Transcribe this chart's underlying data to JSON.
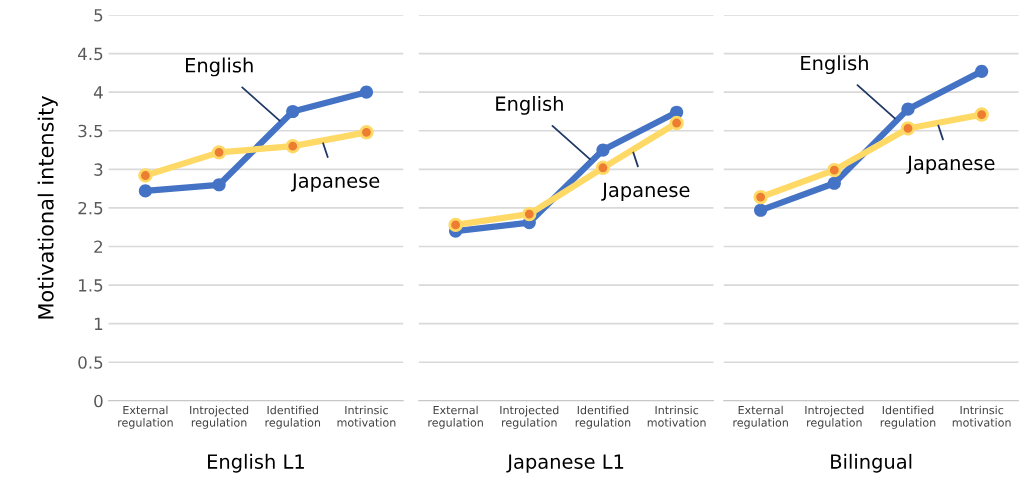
{
  "chart_data": [
    {
      "type": "line",
      "xlabel": "English L1",
      "ylabel": "Motivational intensity",
      "categories": [
        "External\nregulation",
        "Introjected\nregulation",
        "Identified\nregulation",
        "Intrinsic\nmotivation"
      ],
      "ylim": [
        0,
        5
      ],
      "yticks": [
        0,
        0.5,
        1,
        1.5,
        2,
        2.5,
        3,
        3.5,
        4,
        4.5,
        5
      ],
      "grid": "y",
      "marker": "circle",
      "legend": false,
      "series": [
        {
          "name": "Japanese",
          "color": "#ffd966",
          "colors": [
            "#ed7d31",
            "#ed7d31",
            "#ed7d31",
            "#ed7d31"
          ],
          "values": [
            2.92,
            3.22,
            3.3,
            3.48
          ]
        },
        {
          "name": "English",
          "color": "#4472c4",
          "values": [
            2.72,
            2.8,
            3.75,
            4.0
          ]
        }
      ]
    },
    {
      "type": "line",
      "xlabel": "Japanese L1",
      "categories": [
        "External\nregulation",
        "Introjected\nregulation",
        "Identified\nregulation",
        "Intrinsic\nmotivation"
      ],
      "ylim": [
        0,
        5
      ],
      "yticks": [
        0,
        0.5,
        1,
        1.5,
        2,
        2.5,
        3,
        3.5,
        4,
        4.5,
        5
      ],
      "grid": "y",
      "marker": "circle",
      "legend": false,
      "tick_labels": "x",
      "series": [
        {
          "name": "Japanese",
          "color": "#ffd966",
          "colors": [
            "#ed7d31",
            "#ed7d31",
            "#ed7d31",
            "#ed7d31"
          ],
          "values": [
            2.28,
            2.42,
            3.02,
            3.6
          ]
        },
        {
          "name": "English",
          "color": "#4472c4",
          "values": [
            2.2,
            2.31,
            3.25,
            3.74
          ]
        }
      ]
    },
    {
      "type": "line",
      "xlabel": "Bilingual",
      "categories": [
        "External\nregulation",
        "Introjected\nregulation",
        "Identified\nregulation",
        "Intrinsic\nmotivation"
      ],
      "ylim": [
        0,
        5
      ],
      "yticks": [
        0,
        0.5,
        1,
        1.5,
        2,
        2.5,
        3,
        3.5,
        4,
        4.5,
        5
      ],
      "grid": "y",
      "marker": "circle",
      "legend": false,
      "tick_labels": "x",
      "series": [
        {
          "name": "Japanese",
          "color": "#ffd966",
          "colors": [
            "#ed7d31",
            "#ed7d31",
            "#ed7d31",
            "#ed7d31"
          ],
          "values": [
            2.64,
            2.99,
            3.53,
            3.71
          ]
        },
        {
          "name": "English",
          "color": "#4472c4",
          "values": [
            2.47,
            2.82,
            3.78,
            4.27
          ]
        }
      ]
    }
  ]
}
